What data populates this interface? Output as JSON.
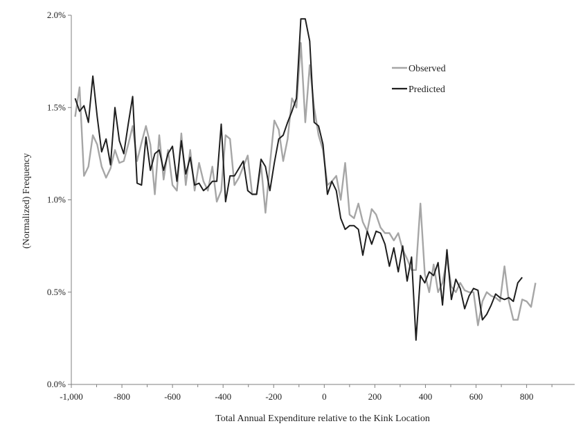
{
  "chart_data": {
    "type": "line",
    "title": "",
    "xlabel": "Total Annual Expenditure relative  to the Kink Location",
    "ylabel": "(Normalized)  Frequency",
    "xlim": [
      -1000,
      990
    ],
    "ylim": [
      0,
      2.0
    ],
    "x_ticks": [
      -1000,
      -800,
      -600,
      -400,
      -200,
      0,
      200,
      400,
      600,
      800
    ],
    "x_tick_labels": [
      "-1,000",
      "-800",
      "-600",
      "-400",
      "-200",
      "0",
      "200",
      "400",
      "600",
      "800"
    ],
    "y_ticks": [
      0,
      0.5,
      1.0,
      1.5,
      2.0
    ],
    "y_tick_labels": [
      "0.0%",
      "0.5%",
      "1.0%",
      "1.5%",
      "2.0%"
    ],
    "grid": false,
    "legend_position": "top-right",
    "x_start": -985,
    "x_step": 17.5,
    "series": [
      {
        "name": "Observed",
        "color": "#a6a6a6",
        "values": [
          1.45,
          1.61,
          1.13,
          1.18,
          1.35,
          1.3,
          1.18,
          1.12,
          1.17,
          1.27,
          1.2,
          1.21,
          1.3,
          1.4,
          1.21,
          1.31,
          1.4,
          1.3,
          1.03,
          1.35,
          1.11,
          1.27,
          1.08,
          1.05,
          1.36,
          1.08,
          1.27,
          1.05,
          1.2,
          1.1,
          1.05,
          1.18,
          0.99,
          1.05,
          1.35,
          1.33,
          1.08,
          1.12,
          1.18,
          1.24,
          1.03,
          1.03,
          1.19,
          0.93,
          1.19,
          1.43,
          1.38,
          1.21,
          1.33,
          1.55,
          1.5,
          1.85,
          1.42,
          1.73,
          1.5,
          1.35,
          1.27,
          1.08,
          1.1,
          1.13,
          1.0,
          1.2,
          0.92,
          0.9,
          0.98,
          0.88,
          0.83,
          0.95,
          0.92,
          0.85,
          0.82,
          0.82,
          0.78,
          0.82,
          0.73,
          0.68,
          0.62,
          0.62,
          0.98,
          0.6,
          0.5,
          0.65,
          0.5,
          0.55,
          0.68,
          0.53,
          0.5,
          0.55,
          0.51,
          0.5,
          0.5,
          0.32,
          0.45,
          0.5,
          0.48,
          0.47,
          0.45,
          0.64,
          0.45,
          0.35,
          0.35,
          0.46,
          0.45,
          0.42,
          0.55
        ]
      },
      {
        "name": "Predicted",
        "color": "#1e1e1e",
        "values": [
          1.55,
          1.48,
          1.51,
          1.42,
          1.67,
          1.45,
          1.26,
          1.33,
          1.19,
          1.5,
          1.32,
          1.25,
          1.41,
          1.56,
          1.09,
          1.08,
          1.34,
          1.16,
          1.25,
          1.27,
          1.16,
          1.25,
          1.29,
          1.1,
          1.32,
          1.14,
          1.23,
          1.08,
          1.09,
          1.05,
          1.07,
          1.1,
          1.1,
          1.41,
          0.99,
          1.13,
          1.13,
          1.17,
          1.21,
          1.05,
          1.03,
          1.03,
          1.22,
          1.18,
          1.05,
          1.2,
          1.33,
          1.35,
          1.42,
          1.48,
          1.55,
          1.98,
          1.98,
          1.86,
          1.42,
          1.4,
          1.3,
          1.03,
          1.1,
          1.05,
          0.9,
          0.84,
          0.86,
          0.86,
          0.84,
          0.7,
          0.83,
          0.76,
          0.83,
          0.82,
          0.76,
          0.64,
          0.74,
          0.61,
          0.75,
          0.56,
          0.69,
          0.24,
          0.59,
          0.55,
          0.61,
          0.59,
          0.66,
          0.43,
          0.73,
          0.46,
          0.57,
          0.52,
          0.41,
          0.48,
          0.52,
          0.51,
          0.35,
          0.38,
          0.43,
          0.49,
          0.47,
          0.46,
          0.47,
          0.45,
          0.55,
          0.58
        ]
      }
    ]
  }
}
